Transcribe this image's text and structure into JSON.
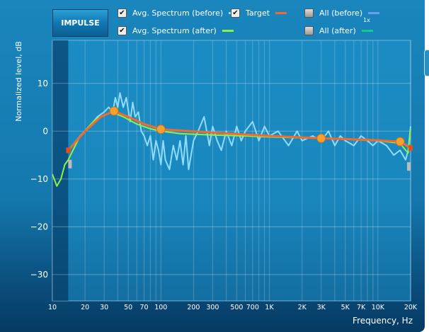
{
  "toolbar": {
    "impulse_label": "IMPULSE",
    "scale_label": "1x"
  },
  "legend": [
    {
      "label": "Avg. Spectrum (before)",
      "checked": true,
      "color": "#8fdcff"
    },
    {
      "label": "Avg. Spectrum (after)",
      "checked": true,
      "color": "#8cf04a"
    },
    {
      "label": "Target",
      "checked": true,
      "color": "#f26a2e"
    },
    {
      "label": "All (before)",
      "checked": false,
      "color": "#6f9cf0"
    },
    {
      "label": "All (after)",
      "checked": false,
      "color": "#14c88e"
    }
  ],
  "chart_data": {
    "type": "line",
    "xlabel": "Frequency, Hz",
    "ylabel": "Normalized level, dB",
    "xscale": "log",
    "xlim": [
      10,
      20000
    ],
    "ylim": [
      -35.5,
      19
    ],
    "x_ticks": [
      {
        "v": 10,
        "l": "10"
      },
      {
        "v": 20,
        "l": "20"
      },
      {
        "v": 30,
        "l": "30"
      },
      {
        "v": 50,
        "l": "50"
      },
      {
        "v": 70,
        "l": "70"
      },
      {
        "v": 100,
        "l": "100"
      },
      {
        "v": 200,
        "l": "200"
      },
      {
        "v": 300,
        "l": "300"
      },
      {
        "v": 500,
        "l": "500"
      },
      {
        "v": 700,
        "l": "700"
      },
      {
        "v": 1000,
        "l": "1K"
      },
      {
        "v": 2000,
        "l": "2K"
      },
      {
        "v": 3000,
        "l": "3K"
      },
      {
        "v": 5000,
        "l": "5K"
      },
      {
        "v": 7000,
        "l": "7K"
      },
      {
        "v": 10000,
        "l": "10K"
      },
      {
        "v": 20000,
        "l": "20K"
      }
    ],
    "y_ticks": [
      {
        "v": 10,
        "l": "10"
      },
      {
        "v": 0,
        "l": "0"
      },
      {
        "v": -10,
        "l": "−10"
      },
      {
        "v": -20,
        "l": "−20"
      },
      {
        "v": -30,
        "l": "−30"
      }
    ],
    "range_low_hz": 14,
    "range_high_hz": 20000,
    "series": [
      {
        "name": "Avg. Spectrum (before)",
        "color": "#8fdcff",
        "x": [
          14,
          18,
          22,
          26,
          30,
          33,
          36,
          38,
          40,
          42,
          45,
          48,
          52,
          55,
          58,
          62,
          66,
          70,
          75,
          80,
          85,
          90,
          95,
          100,
          105,
          110,
          120,
          130,
          140,
          150,
          160,
          170,
          180,
          200,
          220,
          250,
          280,
          300,
          330,
          360,
          400,
          450,
          500,
          550,
          600,
          700,
          800,
          900,
          1000,
          1200,
          1500,
          1800,
          2000,
          2500,
          3000,
          3500,
          4000,
          4500,
          5000,
          6000,
          7000,
          8000,
          9000,
          10000,
          12000,
          14000,
          16000,
          18000,
          19000,
          20000
        ],
        "y": [
          -4,
          -1,
          1,
          3,
          4,
          5,
          4,
          7,
          5,
          8,
          5,
          7,
          2,
          6,
          3,
          4,
          0,
          -1,
          -3,
          -1,
          -6,
          -2,
          -4,
          -7,
          -2,
          -6,
          -8,
          -3,
          -6,
          -2,
          -7,
          -1,
          -8,
          -2,
          0,
          3,
          -3,
          1,
          -2,
          -4,
          0,
          -3,
          1,
          -2,
          0,
          2,
          -2,
          1,
          -1,
          0,
          -3,
          0,
          -2,
          -1,
          -2,
          0,
          -3,
          -1,
          -2,
          -3,
          -1,
          -2,
          -3,
          -2,
          -3,
          -5,
          -4,
          -6,
          -4,
          1
        ]
      },
      {
        "name": "Avg. Spectrum (after)",
        "color": "#8cf04a",
        "x": [
          10,
          11,
          12,
          13,
          14,
          18,
          25,
          35,
          45,
          60,
          80,
          100,
          150,
          300,
          600,
          1000,
          2000,
          3000,
          5000,
          10000,
          16000,
          18000,
          19000,
          20000
        ],
        "y": [
          -9,
          -11.5,
          -10,
          -7,
          -6,
          -1,
          2.5,
          4,
          3,
          1.5,
          0.5,
          0,
          -0.5,
          -0.8,
          -1,
          -1.2,
          -1.4,
          -1.5,
          -1.7,
          -2,
          -2.5,
          -4,
          -4.5,
          0.5
        ]
      },
      {
        "name": "Target",
        "color": "#f26a2e",
        "x": [
          14,
          20,
          28,
          37,
          50,
          70,
          100,
          300,
          1000,
          3000,
          8000,
          16000,
          20000
        ],
        "y": [
          -4,
          0,
          3,
          4.2,
          3,
          1.5,
          0.4,
          -0.3,
          -1,
          -1.5,
          -1.8,
          -2.2,
          -3.5
        ],
        "control_points": [
          {
            "x": 37,
            "y": 4.2
          },
          {
            "x": 100,
            "y": 0.4
          },
          {
            "x": 3000,
            "y": -1.5
          },
          {
            "x": 16000,
            "y": -2.2
          }
        ]
      }
    ]
  }
}
